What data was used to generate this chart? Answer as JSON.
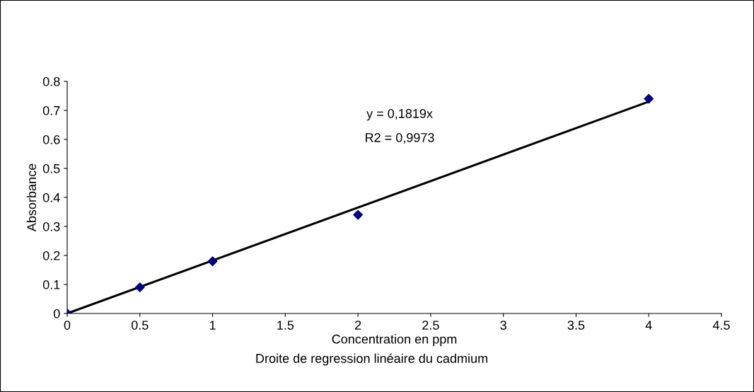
{
  "chart_data": {
    "type": "scatter",
    "title": "Droite de regression linéaire du cadmium",
    "xlabel": "Concentration en ppm",
    "ylabel": "Absorbance",
    "x": [
      0,
      0.5,
      1,
      2,
      4
    ],
    "series": [
      {
        "color": "#000080",
        "values": [
          0,
          0.09,
          0.18,
          0.34,
          0.74
        ],
        "marker": "diamond"
      },
      {
        "type": "line",
        "color": "#000000",
        "x": [
          0,
          4
        ],
        "values": [
          0,
          0.73
        ],
        "marker": "none",
        "line_style": "solid"
      }
    ],
    "annotations": [
      "y = 0,1819x",
      "R2 = 0,9973"
    ],
    "xlim": [
      0,
      4.5
    ],
    "xticks": [
      0,
      0.5,
      1,
      1.5,
      2,
      2.5,
      3,
      3.5,
      4,
      4.5
    ],
    "ylim": [
      0,
      0.8
    ],
    "yticks": [
      0,
      0.1,
      0.2,
      0.3,
      0.4,
      0.5,
      0.6,
      0.7,
      0.8
    ],
    "grid": false,
    "legend": false
  }
}
